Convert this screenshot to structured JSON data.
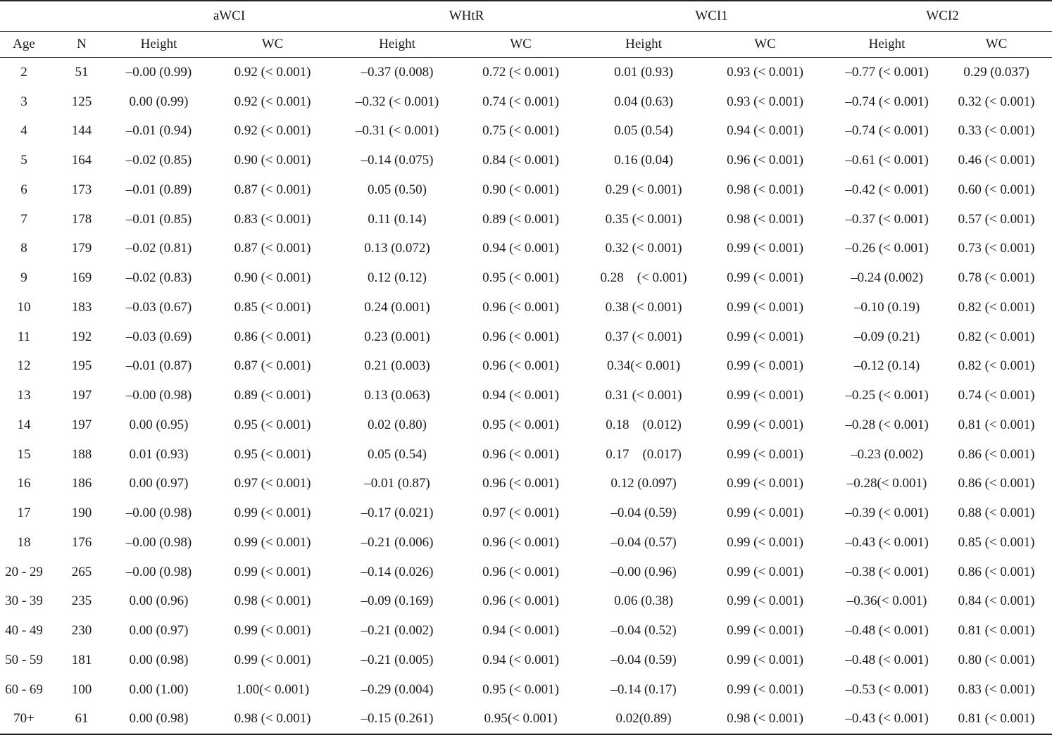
{
  "groups": [
    "aWCI",
    "WHtR",
    "WCI1",
    "WCI2"
  ],
  "subheaders": [
    "Age",
    "N",
    "Height",
    "WC",
    "Height",
    "WC",
    "Height",
    "WC",
    "Height",
    "WC"
  ],
  "rows": [
    [
      "2",
      "51",
      "–0.00 (0.99)",
      "0.92 (< 0.001)",
      "–0.37 (0.008)",
      "0.72 (< 0.001)",
      "0.01 (0.93)",
      "0.93 (< 0.001)",
      "–0.77 (< 0.001)",
      "0.29 (0.037)"
    ],
    [
      "3",
      "125",
      "0.00 (0.99)",
      "0.92 (< 0.001)",
      "–0.32 (< 0.001)",
      "0.74 (< 0.001)",
      "0.04 (0.63)",
      "0.93 (< 0.001)",
      "–0.74 (< 0.001)",
      "0.32 (< 0.001)"
    ],
    [
      "4",
      "144",
      "–0.01 (0.94)",
      "0.92 (< 0.001)",
      "–0.31 (< 0.001)",
      "0.75 (< 0.001)",
      "0.05 (0.54)",
      "0.94 (< 0.001)",
      "–0.74 (< 0.001)",
      "0.33 (< 0.001)"
    ],
    [
      "5",
      "164",
      "–0.02 (0.85)",
      "0.90 (< 0.001)",
      "–0.14 (0.075)",
      "0.84 (< 0.001)",
      "0.16 (0.04)",
      "0.96 (< 0.001)",
      "–0.61 (< 0.001)",
      "0.46 (< 0.001)"
    ],
    [
      "6",
      "173",
      "–0.01 (0.89)",
      "0.87 (< 0.001)",
      "0.05 (0.50)",
      "0.90 (< 0.001)",
      "0.29 (< 0.001)",
      "0.98 (< 0.001)",
      "–0.42 (< 0.001)",
      "0.60 (< 0.001)"
    ],
    [
      "7",
      "178",
      "–0.01 (0.85)",
      "0.83 (< 0.001)",
      "0.11 (0.14)",
      "0.89 (< 0.001)",
      "0.35 (< 0.001)",
      "0.98 (< 0.001)",
      "–0.37 (< 0.001)",
      "0.57 (< 0.001)"
    ],
    [
      "8",
      "179",
      "–0.02 (0.81)",
      "0.87 (< 0.001)",
      "0.13 (0.072)",
      "0.94 (< 0.001)",
      "0.32 (< 0.001)",
      "0.99 (< 0.001)",
      "–0.26 (< 0.001)",
      "0.73 (< 0.001)"
    ],
    [
      "9",
      "169",
      "–0.02 (0.83)",
      "0.90 (< 0.001)",
      "0.12 (0.12)",
      "0.95 (< 0.001)",
      "0.28    (< 0.001)",
      "0.99 (< 0.001)",
      "–0.24 (0.002)",
      "0.78 (< 0.001)"
    ],
    [
      "10",
      "183",
      "–0.03 (0.67)",
      "0.85 (< 0.001)",
      "0.24 (0.001)",
      "0.96 (< 0.001)",
      "0.38 (< 0.001)",
      "0.99 (< 0.001)",
      "–0.10 (0.19)",
      "0.82 (< 0.001)"
    ],
    [
      "11",
      "192",
      "–0.03 (0.69)",
      "0.86 (< 0.001)",
      "0.23 (0.001)",
      "0.96 (< 0.001)",
      "0.37 (< 0.001)",
      "0.99 (< 0.001)",
      "–0.09 (0.21)",
      "0.82 (< 0.001)"
    ],
    [
      "12",
      "195",
      "–0.01 (0.87)",
      "0.87 (< 0.001)",
      "0.21 (0.003)",
      "0.96 (< 0.001)",
      "0.34(< 0.001)",
      "0.99 (< 0.001)",
      "–0.12 (0.14)",
      "0.82 (< 0.001)"
    ],
    [
      "13",
      "197",
      "–0.00 (0.98)",
      "0.89 (< 0.001)",
      "0.13 (0.063)",
      "0.94 (< 0.001)",
      "0.31 (< 0.001)",
      "0.99 (< 0.001)",
      "–0.25 (< 0.001)",
      "0.74 (< 0.001)"
    ],
    [
      "14",
      "197",
      "0.00 (0.95)",
      "0.95 (< 0.001)",
      "0.02 (0.80)",
      "0.95 (< 0.001)",
      "0.18    (0.012)",
      "0.99 (< 0.001)",
      "–0.28 (< 0.001)",
      "0.81 (< 0.001)"
    ],
    [
      "15",
      "188",
      "0.01 (0.93)",
      "0.95 (< 0.001)",
      "0.05 (0.54)",
      "0.96 (< 0.001)",
      "0.17    (0.017)",
      "0.99 (< 0.001)",
      "–0.23 (0.002)",
      "0.86 (< 0.001)"
    ],
    [
      "16",
      "186",
      "0.00 (0.97)",
      "0.97 (< 0.001)",
      "–0.01 (0.87)",
      "0.96 (< 0.001)",
      "0.12 (0.097)",
      "0.99 (< 0.001)",
      "–0.28(< 0.001)",
      "0.86 (< 0.001)"
    ],
    [
      "17",
      "190",
      "–0.00 (0.98)",
      "0.99 (< 0.001)",
      "–0.17 (0.021)",
      "0.97 (< 0.001)",
      "–0.04 (0.59)",
      "0.99 (< 0.001)",
      "–0.39 (< 0.001)",
      "0.88 (< 0.001)"
    ],
    [
      "18",
      "176",
      "–0.00 (0.98)",
      "0.99 (< 0.001)",
      "–0.21 (0.006)",
      "0.96 (< 0.001)",
      "–0.04 (0.57)",
      "0.99 (< 0.001)",
      "–0.43 (< 0.001)",
      "0.85 (< 0.001)"
    ],
    [
      "20 - 29",
      "265",
      "–0.00 (0.98)",
      "0.99 (< 0.001)",
      "–0.14 (0.026)",
      "0.96 (< 0.001)",
      "–0.00 (0.96)",
      "0.99 (< 0.001)",
      "–0.38 (< 0.001)",
      "0.86 (< 0.001)"
    ],
    [
      "30 - 39",
      "235",
      "0.00 (0.96)",
      "0.98 (< 0.001)",
      "–0.09 (0.169)",
      "0.96 (< 0.001)",
      "0.06 (0.38)",
      "0.99 (< 0.001)",
      "–0.36(< 0.001)",
      "0.84 (< 0.001)"
    ],
    [
      "40 - 49",
      "230",
      "0.00 (0.97)",
      "0.99 (< 0.001)",
      "–0.21 (0.002)",
      "0.94 (< 0.001)",
      "–0.04 (0.52)",
      "0.99 (< 0.001)",
      "–0.48 (< 0.001)",
      "0.81 (< 0.001)"
    ],
    [
      "50 - 59",
      "181",
      "0.00 (0.98)",
      "0.99 (< 0.001)",
      "–0.21 (0.005)",
      "0.94 (< 0.001)",
      "–0.04 (0.59)",
      "0.99 (< 0.001)",
      "–0.48 (< 0.001)",
      "0.80 (< 0.001)"
    ],
    [
      "60 - 69",
      "100",
      "0.00 (1.00)",
      "1.00(< 0.001)",
      "–0.29 (0.004)",
      "0.95 (< 0.001)",
      "–0.14 (0.17)",
      "0.99 (< 0.001)",
      "–0.53 (< 0.001)",
      "0.83 (< 0.001)"
    ],
    [
      "70+",
      "61",
      "0.00 (0.98)",
      "0.98 (< 0.001)",
      "–0.15 (0.261)",
      "0.95(< 0.001)",
      "0.02(0.89)",
      "0.98 (< 0.001)",
      "–0.43 (< 0.001)",
      "0.81 (< 0.001)"
    ]
  ]
}
